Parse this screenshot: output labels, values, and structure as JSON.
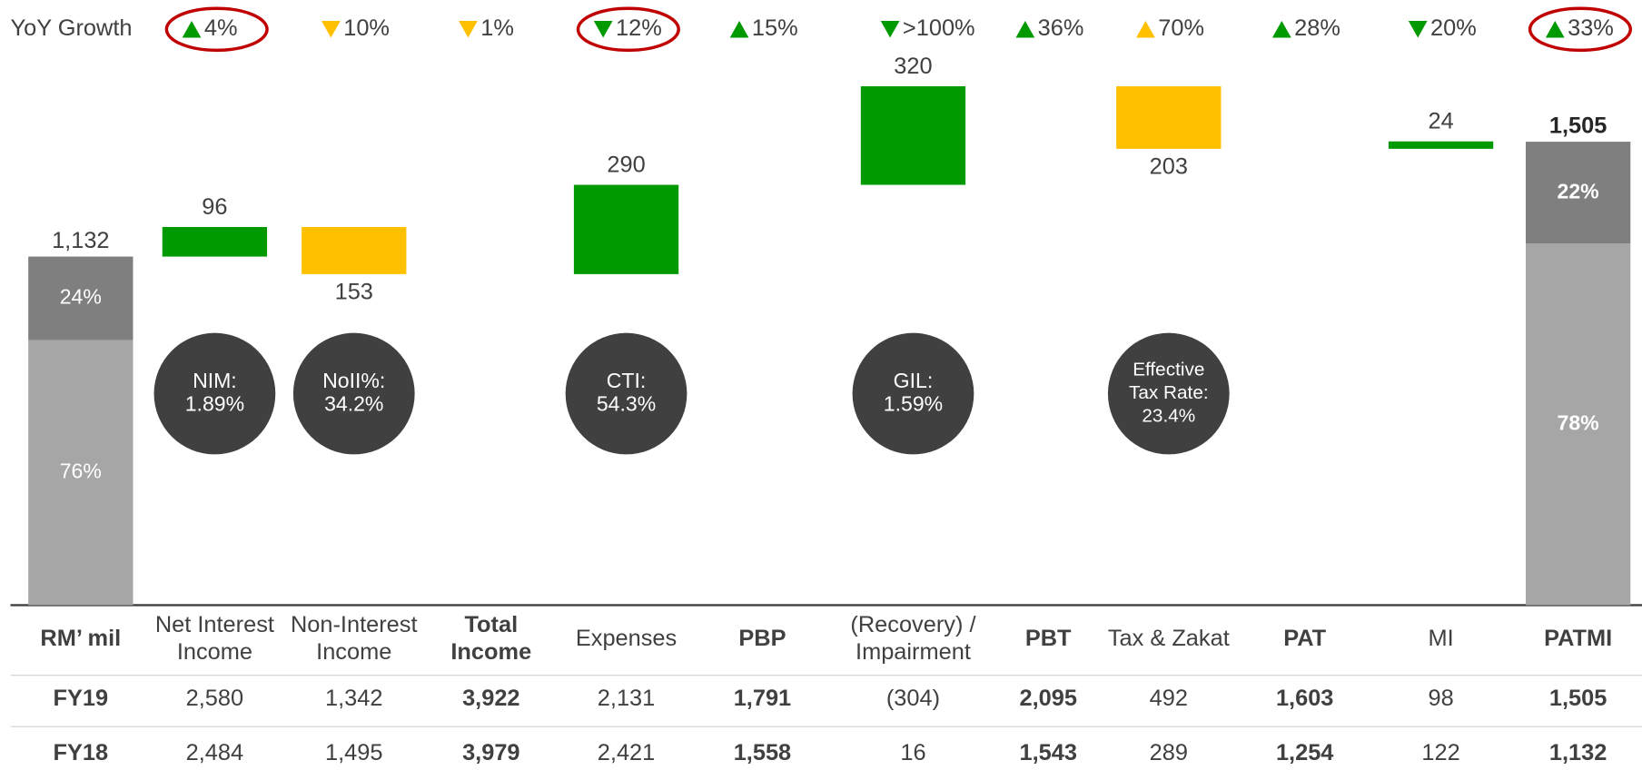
{
  "yoy": {
    "label": "YoY Growth",
    "items": [
      {
        "label": "4%",
        "direction": "up",
        "color": "#009900",
        "circled": true
      },
      {
        "label": "10%",
        "direction": "down",
        "color": "#ffc000",
        "circled": false
      },
      {
        "label": "1%",
        "direction": "down",
        "color": "#ffc000",
        "circled": false
      },
      {
        "label": "12%",
        "direction": "down",
        "color": "#009900",
        "circled": true
      },
      {
        "label": "15%",
        "direction": "up",
        "color": "#009900",
        "circled": false
      },
      {
        "label": ">100%",
        "direction": "down",
        "color": "#009900",
        "circled": false
      },
      {
        "label": "36%",
        "direction": "up",
        "color": "#009900",
        "circled": false
      },
      {
        "label": "70%",
        "direction": "up",
        "color": "#ffc000",
        "circled": false
      },
      {
        "label": "28%",
        "direction": "up",
        "color": "#009900",
        "circled": false
      },
      {
        "label": "20%",
        "direction": "down",
        "color": "#009900",
        "circled": false
      },
      {
        "label": "33%",
        "direction": "up",
        "color": "#009900",
        "circled": true
      }
    ]
  },
  "chart_data": {
    "type": "waterfall",
    "values": [
      1132,
      96,
      153,
      null,
      290,
      null,
      320,
      null,
      203,
      null,
      24,
      1505
    ],
    "value_labels": [
      "1,132",
      "96",
      "153",
      null,
      "290",
      null,
      "320",
      null,
      "203",
      null,
      "24",
      "1,505"
    ],
    "kinds": [
      "total",
      "up",
      "down",
      null,
      "up",
      null,
      "up",
      null,
      "down",
      null,
      "up",
      "total"
    ],
    "value_bold": [
      false,
      false,
      false,
      false,
      false,
      false,
      false,
      false,
      false,
      false,
      false,
      true
    ],
    "colors": {
      "up": "#009900",
      "down": "#ffc000"
    },
    "segments": [
      [
        {
          "value": 24,
          "label": "24%"
        },
        {
          "value": 76,
          "label": "76%"
        }
      ],
      null,
      null,
      null,
      null,
      null,
      null,
      null,
      null,
      null,
      null,
      [
        {
          "value": 22,
          "label": "22%"
        },
        {
          "value": 78,
          "label": "78%"
        }
      ]
    ],
    "segment_colors": [
      "#7f7f7f",
      "#a6a6a6"
    ],
    "ylim": [
      0,
      1700
    ]
  },
  "ratios": [
    null,
    [
      "NIM:",
      "1.89%"
    ],
    [
      "NoII%:",
      "34.2%"
    ],
    null,
    [
      "CTI:",
      "54.3%"
    ],
    null,
    [
      "GIL:",
      "1.59%"
    ],
    null,
    [
      "Effective",
      "Tax Rate:",
      "23.4%"
    ],
    null,
    null,
    null
  ],
  "table": {
    "header": [
      [
        "RM’ mil"
      ],
      [
        "Net Interest",
        "Income"
      ],
      [
        "Non-Interest",
        "Income"
      ],
      [
        "Total",
        "Income"
      ],
      [
        "Expenses"
      ],
      [
        "PBP"
      ],
      [
        "(Recovery) /",
        "Impairment"
      ],
      [
        "PBT"
      ],
      [
        "Tax & Zakat"
      ],
      [
        "PAT"
      ],
      [
        "MI"
      ],
      [
        "PATMI"
      ]
    ],
    "bold": [
      true,
      false,
      false,
      true,
      false,
      true,
      false,
      true,
      false,
      true,
      false,
      true
    ],
    "rows": [
      [
        "FY19",
        "2,580",
        "1,342",
        "3,922",
        "2,131",
        "1,791",
        "(304)",
        "2,095",
        "492",
        "1,603",
        "98",
        "1,505"
      ],
      [
        "FY18",
        "2,484",
        "1,495",
        "3,979",
        "2,421",
        "1,558",
        "16",
        "1,543",
        "289",
        "1,254",
        "122",
        "1,132"
      ]
    ]
  }
}
